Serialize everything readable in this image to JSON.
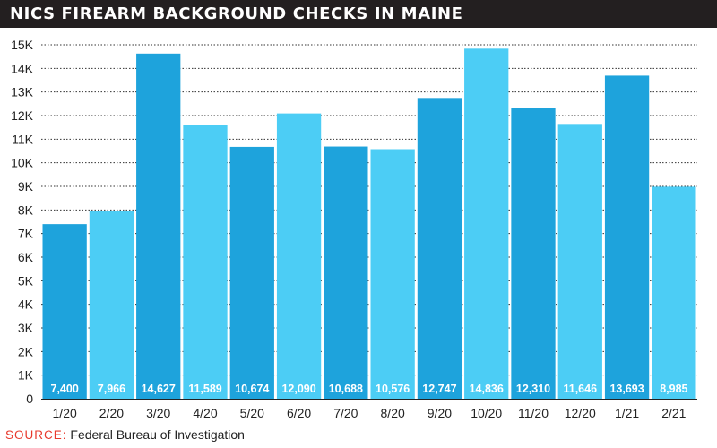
{
  "title": "NICS FIREARM BACKGROUND CHECKS IN MAINE",
  "source": {
    "label": "SOURCE:",
    "value": "Federal Bureau of Investigation"
  },
  "colors": {
    "dark_bar": "#1ea3dc",
    "light_bar": "#4ccdf5",
    "title_bg": "#231f20",
    "source_label": "#e8392c"
  },
  "chart_data": {
    "type": "bar",
    "title": "NICS FIREARM BACKGROUND CHECKS IN MAINE",
    "xlabel": "",
    "ylabel": "",
    "categories": [
      "1/20",
      "2/20",
      "3/20",
      "4/20",
      "5/20",
      "6/20",
      "7/20",
      "8/20",
      "9/20",
      "10/20",
      "11/20",
      "12/20",
      "1/21",
      "2/21"
    ],
    "values": [
      7400,
      7966,
      14627,
      11589,
      10674,
      12090,
      10688,
      10576,
      12747,
      14836,
      12310,
      11646,
      13693,
      8985
    ],
    "value_labels": [
      "7,400",
      "7,966",
      "14,627",
      "11,589",
      "10,674",
      "12,090",
      "10,688",
      "10,576",
      "12,747",
      "14,836",
      "12,310",
      "11,646",
      "13,693",
      "8,985"
    ],
    "ylim": [
      0,
      15000
    ],
    "yticks": [
      0,
      1000,
      2000,
      3000,
      4000,
      5000,
      6000,
      7000,
      8000,
      9000,
      10000,
      11000,
      12000,
      13000,
      14000,
      15000
    ],
    "ytick_labels": [
      "0",
      "1K",
      "2K",
      "3K",
      "4K",
      "5K",
      "6K",
      "7K",
      "8K",
      "9K",
      "10K",
      "11K",
      "12K",
      "13K",
      "14K",
      "15K"
    ],
    "bar_shades": [
      "dark",
      "light",
      "dark",
      "light",
      "dark",
      "light",
      "dark",
      "light",
      "dark",
      "light",
      "dark",
      "light",
      "dark",
      "light"
    ],
    "grid": true,
    "legend": "none"
  }
}
